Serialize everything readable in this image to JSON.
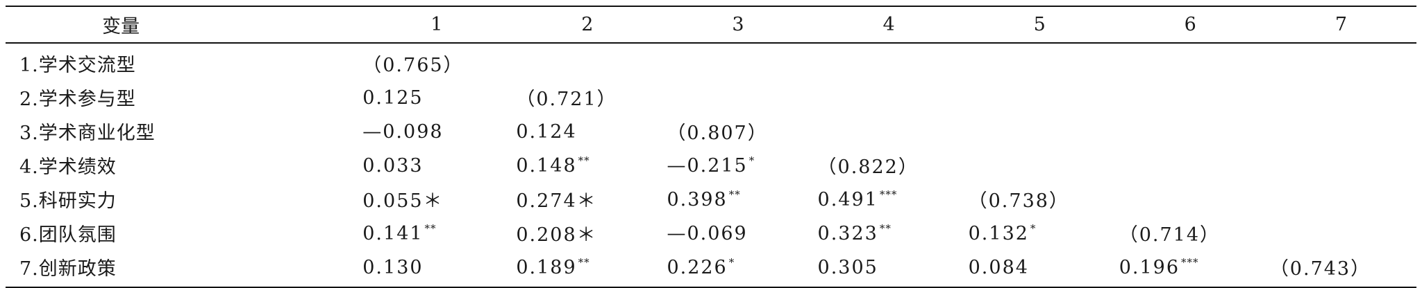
{
  "table": {
    "header": [
      "变量",
      "1",
      "2",
      "3",
      "4",
      "5",
      "6",
      "7"
    ],
    "rows": [
      {
        "label": "1.学术交流型",
        "cells": [
          {
            "v": "（0.765）",
            "s": ""
          },
          {
            "v": "",
            "s": ""
          },
          {
            "v": "",
            "s": ""
          },
          {
            "v": "",
            "s": ""
          },
          {
            "v": "",
            "s": ""
          },
          {
            "v": "",
            "s": ""
          },
          {
            "v": "",
            "s": ""
          }
        ]
      },
      {
        "label": "2.学术参与型",
        "cells": [
          {
            "v": "0.125",
            "s": ""
          },
          {
            "v": "（0.721）",
            "s": ""
          },
          {
            "v": "",
            "s": ""
          },
          {
            "v": "",
            "s": ""
          },
          {
            "v": "",
            "s": ""
          },
          {
            "v": "",
            "s": ""
          },
          {
            "v": "",
            "s": ""
          }
        ]
      },
      {
        "label": "3.学术商业化型",
        "cells": [
          {
            "v": "—0.098",
            "s": ""
          },
          {
            "v": "0.124",
            "s": ""
          },
          {
            "v": "（0.807）",
            "s": ""
          },
          {
            "v": "",
            "s": ""
          },
          {
            "v": "",
            "s": ""
          },
          {
            "v": "",
            "s": ""
          },
          {
            "v": "",
            "s": ""
          }
        ]
      },
      {
        "label": "4.学术绩效",
        "cells": [
          {
            "v": "0.033",
            "s": ""
          },
          {
            "v": "0.148",
            "s": "**"
          },
          {
            "v": "—0.215",
            "s": "*"
          },
          {
            "v": "（0.822）",
            "s": ""
          },
          {
            "v": "",
            "s": ""
          },
          {
            "v": "",
            "s": ""
          },
          {
            "v": "",
            "s": ""
          }
        ]
      },
      {
        "label": "5.科研实力",
        "cells": [
          {
            "v": "0.055＊",
            "s": ""
          },
          {
            "v": "0.274＊",
            "s": ""
          },
          {
            "v": "0.398",
            "s": "**"
          },
          {
            "v": "0.491",
            "s": "***"
          },
          {
            "v": "（0.738）",
            "s": ""
          },
          {
            "v": "",
            "s": ""
          },
          {
            "v": "",
            "s": ""
          }
        ]
      },
      {
        "label": "6.团队氛围",
        "cells": [
          {
            "v": "0.141",
            "s": "**"
          },
          {
            "v": "0.208＊",
            "s": ""
          },
          {
            "v": "—0.069",
            "s": ""
          },
          {
            "v": "0.323",
            "s": "**"
          },
          {
            "v": "0.132",
            "s": "*"
          },
          {
            "v": "（0.714）",
            "s": ""
          },
          {
            "v": "",
            "s": ""
          }
        ]
      },
      {
        "label": "7.创新政策",
        "cells": [
          {
            "v": "0.130",
            "s": ""
          },
          {
            "v": "0.189",
            "s": "**"
          },
          {
            "v": "0.226",
            "s": "*"
          },
          {
            "v": "0.305",
            "s": ""
          },
          {
            "v": "0.084",
            "s": ""
          },
          {
            "v": "0.196",
            "s": "***"
          },
          {
            "v": "（0.743）",
            "s": ""
          }
        ]
      }
    ]
  }
}
